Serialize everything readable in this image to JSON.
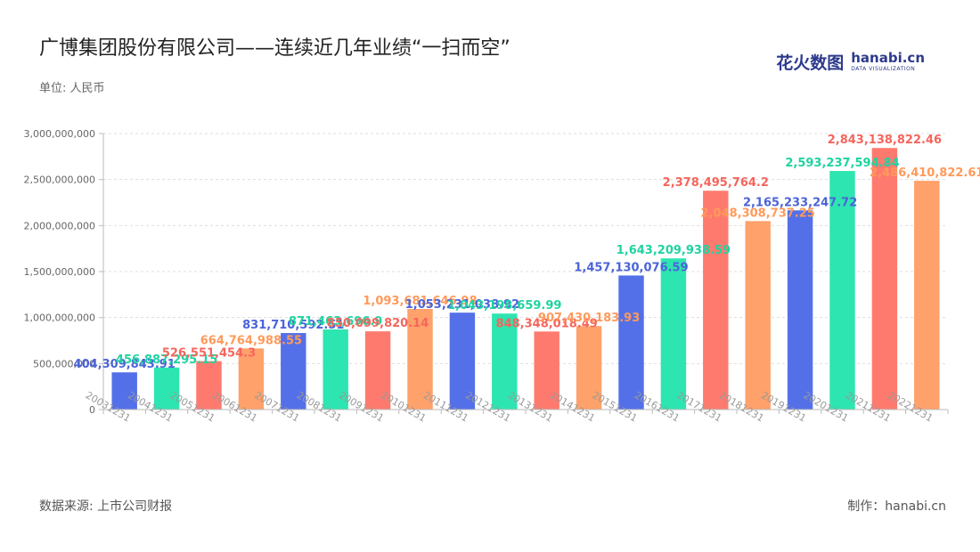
{
  "header": {
    "title": "广博集团股份有限公司——连续近几年业绩“一扫而空”",
    "unit": "单位: 人民币"
  },
  "logo": {
    "name_cn": "花火数图",
    "name_en": "hanabi.cn",
    "tagline": "DATA VISUALIZATION"
  },
  "footer": {
    "source": "数据来源: 上市公司财报",
    "maker": "制作：hanabi.cn"
  },
  "chart_data": {
    "type": "bar",
    "categories": [
      "20031231",
      "20041231",
      "20051231",
      "20061231",
      "20071231",
      "20081231",
      "20091231",
      "20101231",
      "20111231",
      "20121231",
      "20131231",
      "20141231",
      "20151231",
      "20161231",
      "20171231",
      "20181231",
      "20191231",
      "20201231",
      "20211231",
      "20221231"
    ],
    "values": [
      404309843.91,
      456887295.15,
      526551454.3,
      664764988.55,
      831710592.51,
      871463696.9,
      850099820.14,
      1093681646.98,
      1053231038.92,
      1043198659.99,
      848348018.49,
      907430183.93,
      1457130076.59,
      1643209938.59,
      2378495764.2,
      2048308737.25,
      2165233247.72,
      2593237594.84,
      2843138822.46,
      2486410822.61
    ],
    "value_labels": [
      "404,309,843.91",
      "456,887,295.15",
      "526,551,454.3",
      "664,764,988.55",
      "831,710,592.51",
      "871,463,696.9",
      "850,099,820.14",
      "1,093,681,646.98",
      "1,053,231,038.92",
      "1,043,198,659.99",
      "848,348,018.49",
      "907,430,183.93",
      "1,457,130,076.59",
      "1,643,209,938.59",
      "2,378,495,764.2",
      "2,048,308,737.25",
      "2,165,233,247.72",
      "2,593,237,594.84",
      "2,843,138,822.46",
      "2,486,410,822.61"
    ],
    "bar_colors": [
      "#5470e8",
      "#2de5b0",
      "#ff7a6e",
      "#ffa16a"
    ],
    "label_colors": [
      "#4b63d9",
      "#1fd3a0",
      "#f5655c",
      "#ff9a5a"
    ],
    "yticks": [
      0,
      500000000,
      1000000000,
      1500000000,
      2000000000,
      2500000000,
      3000000000
    ],
    "ytick_labels": [
      "0",
      "500,000,000",
      "1,000,000,000",
      "1,500,000,000",
      "2,000,000,000",
      "2,500,000,000",
      "3,000,000,000"
    ],
    "ylim": [
      0,
      3000000000
    ],
    "grid": true
  }
}
